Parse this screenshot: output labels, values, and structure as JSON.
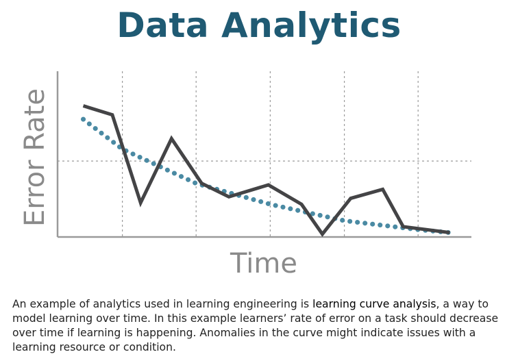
{
  "colors": {
    "title": "#1f5a73",
    "actual_line": "#444446",
    "trend_line": "#4a8aa3",
    "axis": "#9a9a9a",
    "grid": "#9a9a9a",
    "axis_label": "#8a8a8a"
  },
  "chart_data": {
    "type": "line",
    "title": "Data Analytics",
    "xlabel": "Time",
    "ylabel": "Error Rate",
    "xlim": [
      0,
      10
    ],
    "ylim": [
      0,
      10
    ],
    "grid": true,
    "grid_x": [
      1.74,
      3.72,
      5.71,
      7.7,
      9.68
    ],
    "grid_y": [
      5.0
    ],
    "ticks_labeled": false,
    "series": [
      {
        "style": "solid",
        "x": [
          0.69,
          1.47,
          2.23,
          3.06,
          3.87,
          4.6,
          5.66,
          6.55,
          7.11,
          7.87,
          8.73,
          9.28,
          10.53
        ],
        "y": [
          8.7,
          8.1,
          2.2,
          6.5,
          3.5,
          2.6,
          3.4,
          2.1,
          0.1,
          2.5,
          3.1,
          0.6,
          0.2
        ]
      },
      {
        "style": "dotted",
        "x": [
          0.69,
          1.74,
          3.72,
          5.71,
          7.7,
          9.68,
          10.53
        ],
        "y": [
          7.8,
          5.8,
          3.5,
          2.1,
          1.0,
          0.4,
          0.2
        ]
      }
    ]
  },
  "caption": {
    "part1": "An example of analytics used in learning engineering is ",
    "highlight": "learning curve analysis",
    "part2": ", a way to model learning over time. In this example learners’ rate of error on a task should decrease over time if learning is happening. Anomalies in the curve might indicate issues with a learning resource or condition."
  }
}
